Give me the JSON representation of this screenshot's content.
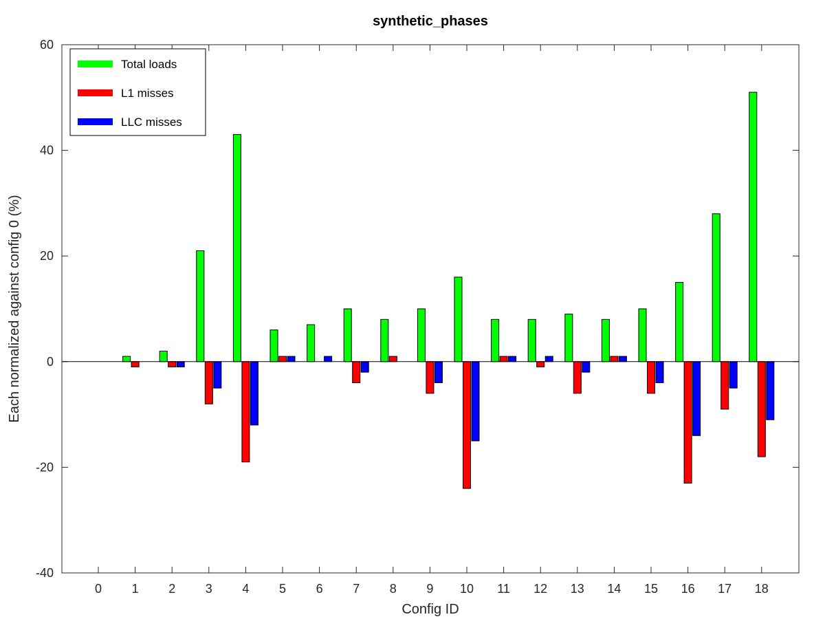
{
  "chart_data": {
    "type": "bar",
    "title": "synthetic_phases",
    "xlabel": "Config ID",
    "ylabel": "Each normalized against config 0 (%)",
    "categories": [
      "0",
      "1",
      "2",
      "3",
      "4",
      "5",
      "6",
      "7",
      "8",
      "9",
      "10",
      "11",
      "12",
      "13",
      "14",
      "15",
      "16",
      "17",
      "18"
    ],
    "ylim": [
      -40,
      60
    ],
    "yticks": [
      -40,
      -20,
      0,
      20,
      40,
      60
    ],
    "legend_position": "top-left",
    "grid": false,
    "series": [
      {
        "name": "Total loads",
        "color": "#00ff00",
        "values": [
          0,
          1,
          2,
          21,
          43,
          6,
          7,
          10,
          8,
          10,
          16,
          8,
          8,
          9,
          8,
          10,
          15,
          28,
          51
        ]
      },
      {
        "name": "L1 misses",
        "color": "#ff0000",
        "values": [
          0,
          -1,
          -1,
          -8,
          -19,
          1,
          0,
          -4,
          1,
          -6,
          -24,
          1,
          -1,
          -6,
          1,
          -6,
          -23,
          -9,
          -18
        ]
      },
      {
        "name": "LLC misses",
        "color": "#0000ff",
        "values": [
          0,
          0,
          -1,
          -5,
          -12,
          1,
          1,
          -2,
          0,
          -4,
          -15,
          1,
          1,
          -2,
          1,
          -4,
          -14,
          -5,
          -11
        ]
      }
    ]
  }
}
